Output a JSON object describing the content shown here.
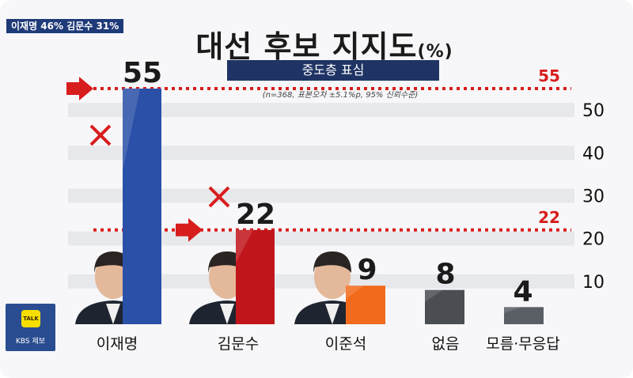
{
  "tagline": "이재명 46% 김문수 31%",
  "title": "대선 후보 지지도",
  "title_unit": "(%)",
  "subtitle": "중도층 표심",
  "note": "(n=368, 표본오차 ±5.1%p, 95% 신뢰수준)",
  "badge": {
    "talk": "TALK",
    "label": "KBS 제보"
  },
  "colors": {
    "lee": "#2b50a8",
    "kim": "#c0161b",
    "lee_jun": "#f26a1b",
    "none": "#4a4d52",
    "dk": "#5a5e65",
    "reference": "#d81d1d"
  },
  "chart_data": {
    "type": "bar",
    "categories": [
      "이재명",
      "김문수",
      "이준석",
      "없음",
      "모름·무응답"
    ],
    "values": [
      55,
      22,
      9,
      8,
      4
    ],
    "value_labels": [
      "55",
      "22",
      "9",
      "8",
      "4"
    ],
    "yticks": [
      10,
      20,
      30,
      40,
      50
    ],
    "ylim": [
      0,
      55
    ],
    "grid": "horizontal bands",
    "reference_lines": [
      {
        "value": 55,
        "label": "55"
      },
      {
        "value": 22,
        "label": "22"
      }
    ],
    "crossed_out": [
      0,
      1
    ]
  }
}
